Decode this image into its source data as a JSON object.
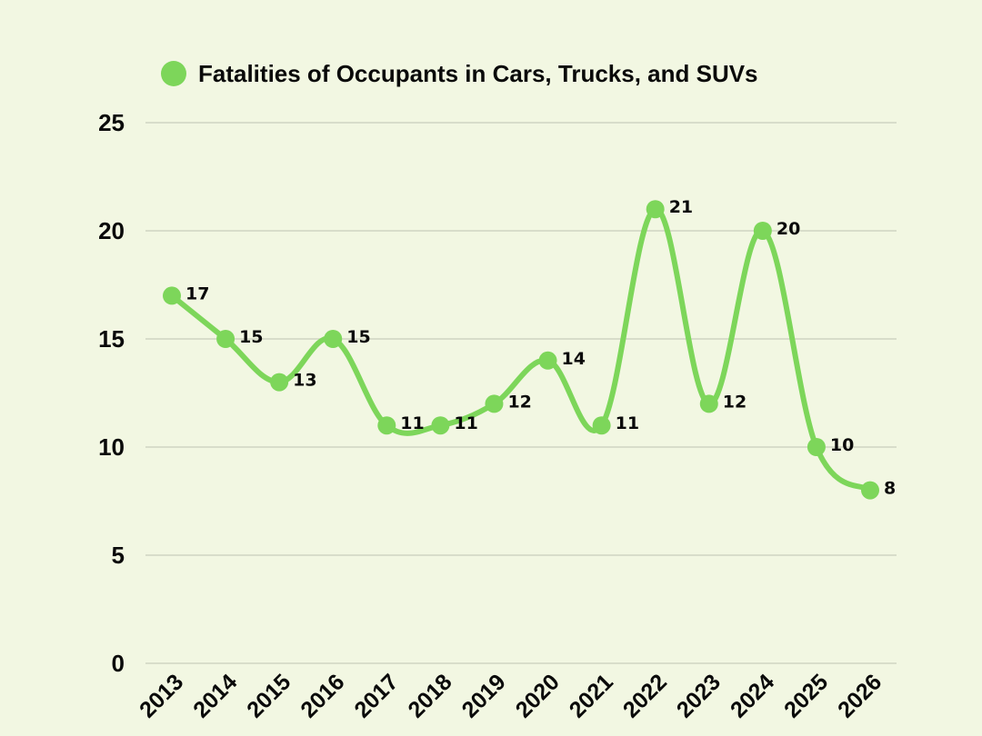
{
  "chart_data": {
    "type": "line",
    "title": "",
    "xlabel": "",
    "ylabel": "",
    "x": [
      "2013",
      "2014",
      "2015",
      "2016",
      "2017",
      "2018",
      "2019",
      "2020",
      "2021",
      "2022",
      "2023",
      "2024",
      "2025",
      "2026"
    ],
    "series": [
      {
        "name": "Fatalities of Occupants in Cars, Trucks, and SUVs",
        "color": "#7dd65a",
        "values": [
          17,
          15,
          13,
          15,
          11,
          11,
          12,
          14,
          11,
          21,
          12,
          20,
          10,
          8
        ]
      }
    ],
    "ylim": [
      0,
      25
    ],
    "yticks": [
      0,
      5,
      10,
      15,
      20,
      25
    ],
    "grid": true,
    "legend_position": "top-center",
    "smooth": true,
    "data_labels": true
  }
}
